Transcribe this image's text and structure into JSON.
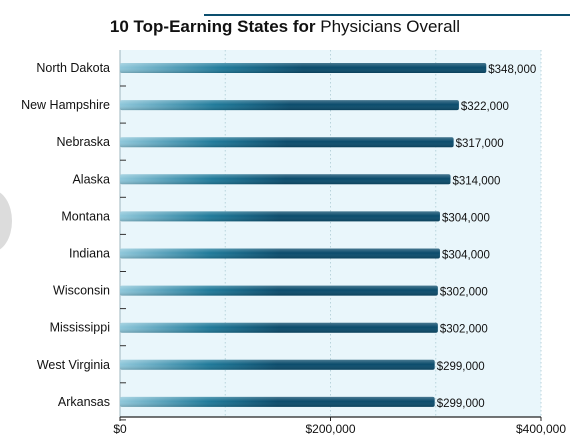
{
  "title": {
    "bold": "10 Top-Earning States for",
    "light": "Physicians Overall"
  },
  "colors": {
    "plot_background": "#e9f6fb",
    "bar_light": "#8ec7da",
    "bar_mid": "#1f7a9a",
    "bar_dark": "#0b4c6c",
    "grid": "#b8d3db",
    "title_rule": "#0c4f6e"
  },
  "chart_data": {
    "type": "bar",
    "orientation": "horizontal",
    "title": "10 Top-Earning States for Physicians Overall",
    "categories": [
      "North Dakota",
      "New Hampshire",
      "Nebraska",
      "Alaska",
      "Montana",
      "Indiana",
      "Wisconsin",
      "Mississippi",
      "West Virginia",
      "Arkansas"
    ],
    "values": [
      348000,
      322000,
      317000,
      314000,
      304000,
      304000,
      302000,
      302000,
      299000,
      299000
    ],
    "value_labels": [
      "$348,000",
      "$322,000",
      "$317,000",
      "$314,000",
      "$304,000",
      "$304,000",
      "$302,000",
      "$302,000",
      "$299,000",
      "$299,000"
    ],
    "xlim": [
      0,
      400000
    ],
    "x_ticks": [
      0,
      200000,
      400000
    ],
    "x_tick_labels": [
      "$0",
      "$200,000",
      "$400,000"
    ],
    "xlabel": "",
    "ylabel": "",
    "grid": true
  }
}
